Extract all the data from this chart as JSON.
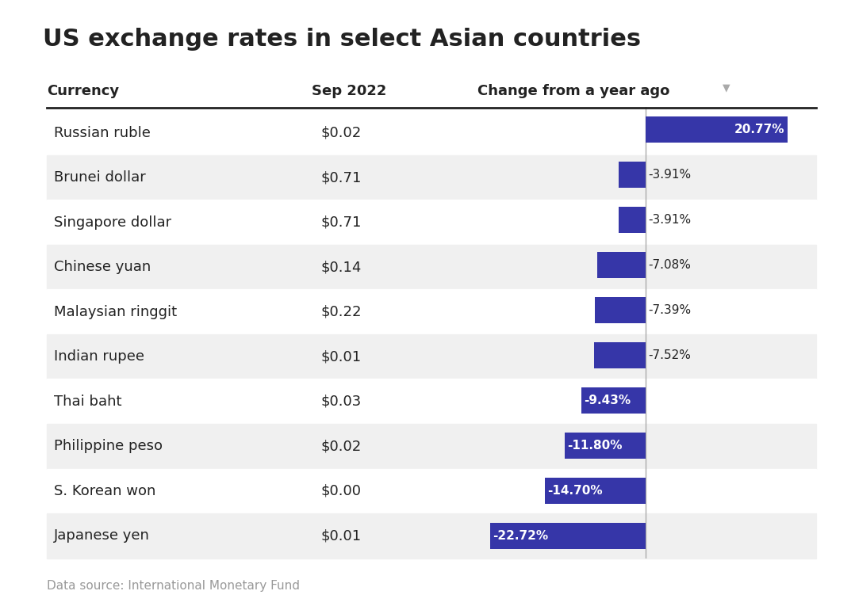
{
  "title": "US exchange rates in select Asian countries",
  "col_currency": "Currency",
  "col_sep2022": "Sep 2022",
  "col_change": "Change from a year ago",
  "footer": "Data source: International Monetary Fund",
  "currencies": [
    "Russian ruble",
    "Brunei dollar",
    "Singapore dollar",
    "Chinese yuan",
    "Malaysian ringgit",
    "Indian rupee",
    "Thai baht",
    "Philippine peso",
    "S. Korean won",
    "Japanese yen"
  ],
  "sep2022": [
    "$0.02",
    "$0.71",
    "$0.71",
    "$0.14",
    "$0.22",
    "$0.01",
    "$0.03",
    "$0.02",
    "$0.00",
    "$0.01"
  ],
  "changes": [
    20.77,
    -3.91,
    -3.91,
    -7.08,
    -7.39,
    -7.52,
    -9.43,
    -11.8,
    -14.7,
    -22.72
  ],
  "change_labels": [
    "20.77%",
    "-3.91%",
    "-3.91%",
    "-7.08%",
    "-7.39%",
    "-7.52%",
    "-9.43%",
    "-11.80%",
    "-14.70%",
    "-22.72%"
  ],
  "bar_color": "#3636a8",
  "background_color": "#ffffff",
  "row_alt_color": "#f0f0f0",
  "header_line_color": "#222222",
  "text_color": "#222222",
  "label_color_inside": "#ffffff",
  "label_color_outside": "#222222",
  "title_fontsize": 22,
  "header_fontsize": 13,
  "row_fontsize": 13,
  "inside_label_threshold": 9.0,
  "xlim": [
    -25,
    25
  ]
}
